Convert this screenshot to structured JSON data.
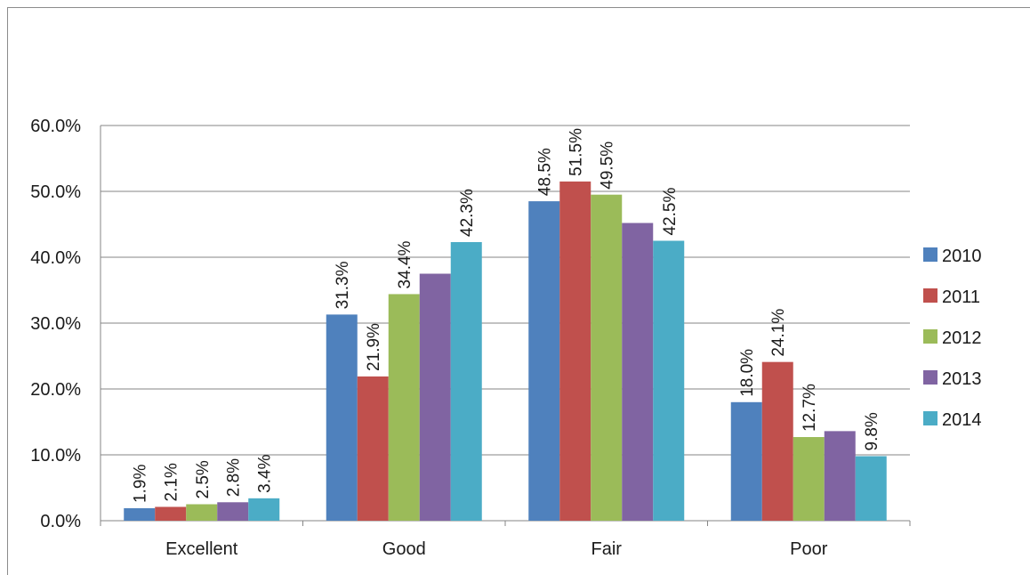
{
  "chart_data": {
    "type": "bar",
    "title": "",
    "xlabel": "",
    "ylabel": "",
    "categories": [
      "Excellent",
      "Good",
      "Fair",
      "Poor"
    ],
    "series": [
      {
        "name": "2010",
        "color": "#4f81bd",
        "values": [
          1.9,
          31.3,
          48.5,
          18.0
        ],
        "labels": [
          "1.9%",
          "31.3%",
          "48.5%",
          "18.0%"
        ]
      },
      {
        "name": "2011",
        "color": "#c0504d",
        "values": [
          2.1,
          21.9,
          51.5,
          24.1
        ],
        "labels": [
          "2.1%",
          "21.9%",
          "51.5%",
          "24.1%"
        ]
      },
      {
        "name": "2012",
        "color": "#9bbb59",
        "values": [
          2.5,
          34.4,
          49.5,
          12.7
        ],
        "labels": [
          "2.5%",
          "34.4%",
          "49.5%",
          "12.7%"
        ]
      },
      {
        "name": "2013",
        "color": "#8064a2",
        "values": [
          2.8,
          37.5,
          45.2,
          13.6
        ],
        "labels": [
          "2.8%",
          "",
          "",
          ""
        ]
      },
      {
        "name": "2014",
        "color": "#4bacc6",
        "values": [
          3.4,
          42.3,
          42.5,
          9.8
        ],
        "labels": [
          "3.4%",
          "42.3%",
          "42.5%",
          "9.8%"
        ]
      }
    ],
    "ylim": [
      0,
      60
    ],
    "yticks": [
      0,
      10,
      20,
      30,
      40,
      50,
      60
    ],
    "ytick_labels": [
      "0.0%",
      "10.0%",
      "20.0%",
      "30.0%",
      "40.0%",
      "50.0%",
      "60.0%"
    ],
    "grid": true,
    "legend_position": "right"
  }
}
